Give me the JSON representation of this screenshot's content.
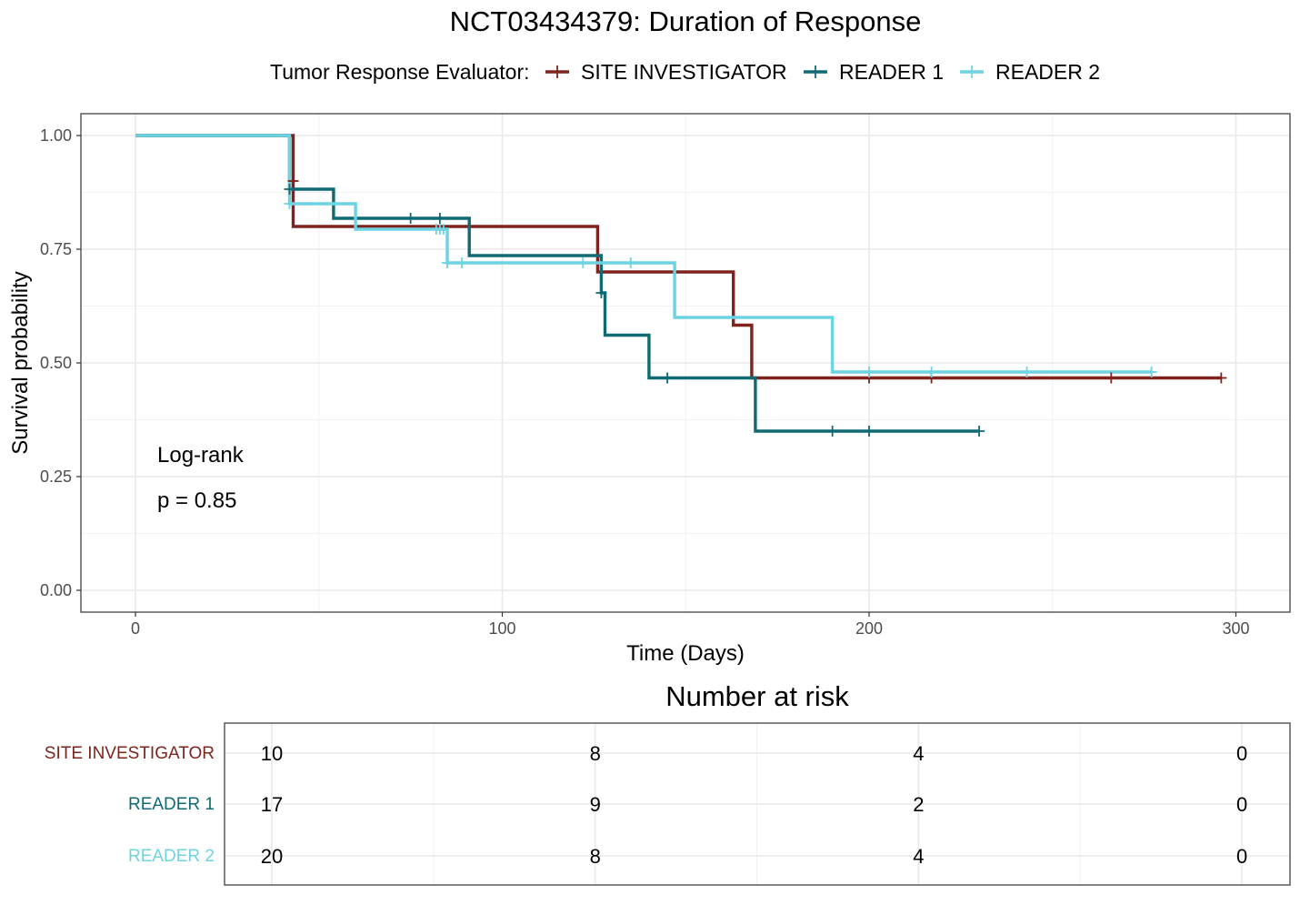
{
  "chart_data": {
    "type": "line",
    "subtype": "kaplan-meier",
    "title": "NCT03434379: Duration of Response",
    "legend": {
      "title": "Tumor Response Evaluator:",
      "position": "top"
    },
    "xlabel": "Time (Days)",
    "ylabel": "Survival probability",
    "xlim": [
      -15,
      315
    ],
    "ylim": [
      -0.05,
      1.05
    ],
    "x_ticks": [
      0,
      100,
      200,
      300
    ],
    "x_tick_labels": [
      "0",
      "100",
      "200",
      "300"
    ],
    "y_ticks": [
      0,
      0.25,
      0.5,
      0.75,
      1.0
    ],
    "y_tick_labels": [
      "0.00",
      "0.25",
      "0.50",
      "0.75",
      "1.00"
    ],
    "grid": true,
    "annotation": {
      "line1": "Log-rank",
      "line2": "p = 0.85"
    },
    "series": [
      {
        "name": "SITE INVESTIGATOR",
        "color": "#7f231c",
        "x": [
          0,
          43,
          43,
          126,
          126,
          163,
          163,
          168,
          168,
          296
        ],
        "y": [
          1.0,
          1.0,
          0.8,
          0.8,
          0.7,
          0.7,
          0.583,
          0.583,
          0.467,
          0.467
        ],
        "censor_x": [
          43,
          200,
          217,
          266,
          296
        ],
        "censor_y": [
          0.9,
          0.467,
          0.467,
          0.467,
          0.467
        ]
      },
      {
        "name": "READER 1",
        "color": "#0f6a74",
        "x": [
          0,
          42,
          42,
          54,
          54,
          91,
          91,
          127,
          127,
          128,
          128,
          140,
          140,
          169,
          169,
          230
        ],
        "y": [
          1.0,
          1.0,
          0.882,
          0.882,
          0.818,
          0.818,
          0.736,
          0.736,
          0.654,
          0.654,
          0.561,
          0.561,
          0.467,
          0.467,
          0.35,
          0.35
        ],
        "censor_x": [
          42,
          75,
          83,
          127,
          145,
          190,
          200,
          230
        ],
        "censor_y": [
          0.882,
          0.818,
          0.818,
          0.654,
          0.467,
          0.35,
          0.35,
          0.35
        ]
      },
      {
        "name": "READER 2",
        "color": "#6dd3e3",
        "x": [
          0,
          42,
          42,
          60,
          60,
          85,
          85,
          147,
          147,
          190,
          190,
          277
        ],
        "y": [
          1.0,
          1.0,
          0.85,
          0.85,
          0.794,
          0.794,
          0.72,
          0.72,
          0.6,
          0.6,
          0.48,
          0.48
        ],
        "censor_x": [
          42,
          82,
          83,
          84,
          85,
          89,
          122,
          135,
          200,
          217,
          243,
          277
        ],
        "censor_y": [
          0.85,
          0.794,
          0.794,
          0.794,
          0.72,
          0.72,
          0.72,
          0.72,
          0.48,
          0.48,
          0.48,
          0.48
        ]
      }
    ],
    "risk_table": {
      "title": "Number at risk",
      "times": [
        0,
        100,
        200,
        300
      ],
      "rows": [
        {
          "name": "SITE INVESTIGATOR",
          "color": "#7f231c",
          "values": [
            "10",
            "8",
            "4",
            "0"
          ]
        },
        {
          "name": "READER 1",
          "color": "#0f6a74",
          "values": [
            "17",
            "9",
            "2",
            "0"
          ]
        },
        {
          "name": "READER 2",
          "color": "#6dd3e3",
          "values": [
            "20",
            "8",
            "4",
            "0"
          ]
        }
      ]
    }
  }
}
